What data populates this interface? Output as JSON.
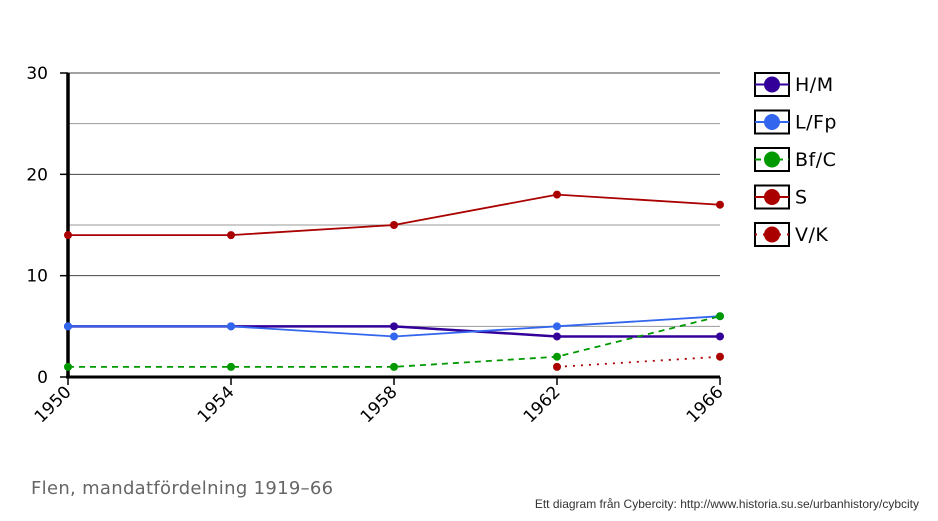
{
  "chart_data": {
    "type": "line",
    "title": "",
    "xlabel": "",
    "ylabel": "",
    "x": [
      1950,
      1954,
      1958,
      1962,
      1966
    ],
    "x_tick_labels": [
      "1950",
      "1954",
      "1958",
      "1962",
      "1966"
    ],
    "ylim": [
      0,
      30
    ],
    "y_ticks": [
      0,
      10,
      20,
      30
    ],
    "y_tick_labels": [
      "0",
      "10",
      "20",
      "30"
    ],
    "minor_gridlines": [
      5,
      15,
      25
    ],
    "grid": true,
    "legend_position": "right",
    "series": [
      {
        "name": "H/M",
        "color": "#330099",
        "style": "solid",
        "marker_color": "#330099",
        "values": [
          5,
          5,
          5,
          4,
          4
        ]
      },
      {
        "name": "L/Fp",
        "color": "#3366ee",
        "style": "solid",
        "marker_color": "#3366ee",
        "values": [
          5,
          5,
          4,
          5,
          6
        ]
      },
      {
        "name": "Bf/C",
        "color": "#009900",
        "style": "dashed",
        "marker_color": "#009900",
        "values": [
          1,
          1,
          1,
          2,
          6
        ]
      },
      {
        "name": "S",
        "color": "#aa0000",
        "style": "solid",
        "marker_color": "#aa0000",
        "values": [
          14,
          14,
          15,
          18,
          17
        ]
      },
      {
        "name": "V/K",
        "color": "#aa0000",
        "style": "dotted",
        "marker_color": "#aa0000",
        "values": [
          null,
          null,
          null,
          1,
          2
        ]
      }
    ]
  },
  "caption": "Flen, mandatfördelning 1919–66",
  "source": "Ett diagram från Cybercity: http://www.historia.su.se/urbanhistory/cybcity"
}
